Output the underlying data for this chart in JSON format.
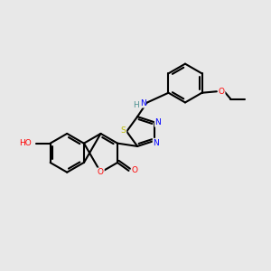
{
  "background_color": "#e8e8e8",
  "bond_color": "#000000",
  "atom_colors": {
    "O": "#ff0000",
    "N": "#0000ff",
    "S": "#bbbb00",
    "H_teal": "#4a9090",
    "C": "#000000"
  },
  "line_width": 1.5,
  "figsize": [
    3.0,
    3.0
  ],
  "dpi": 100
}
